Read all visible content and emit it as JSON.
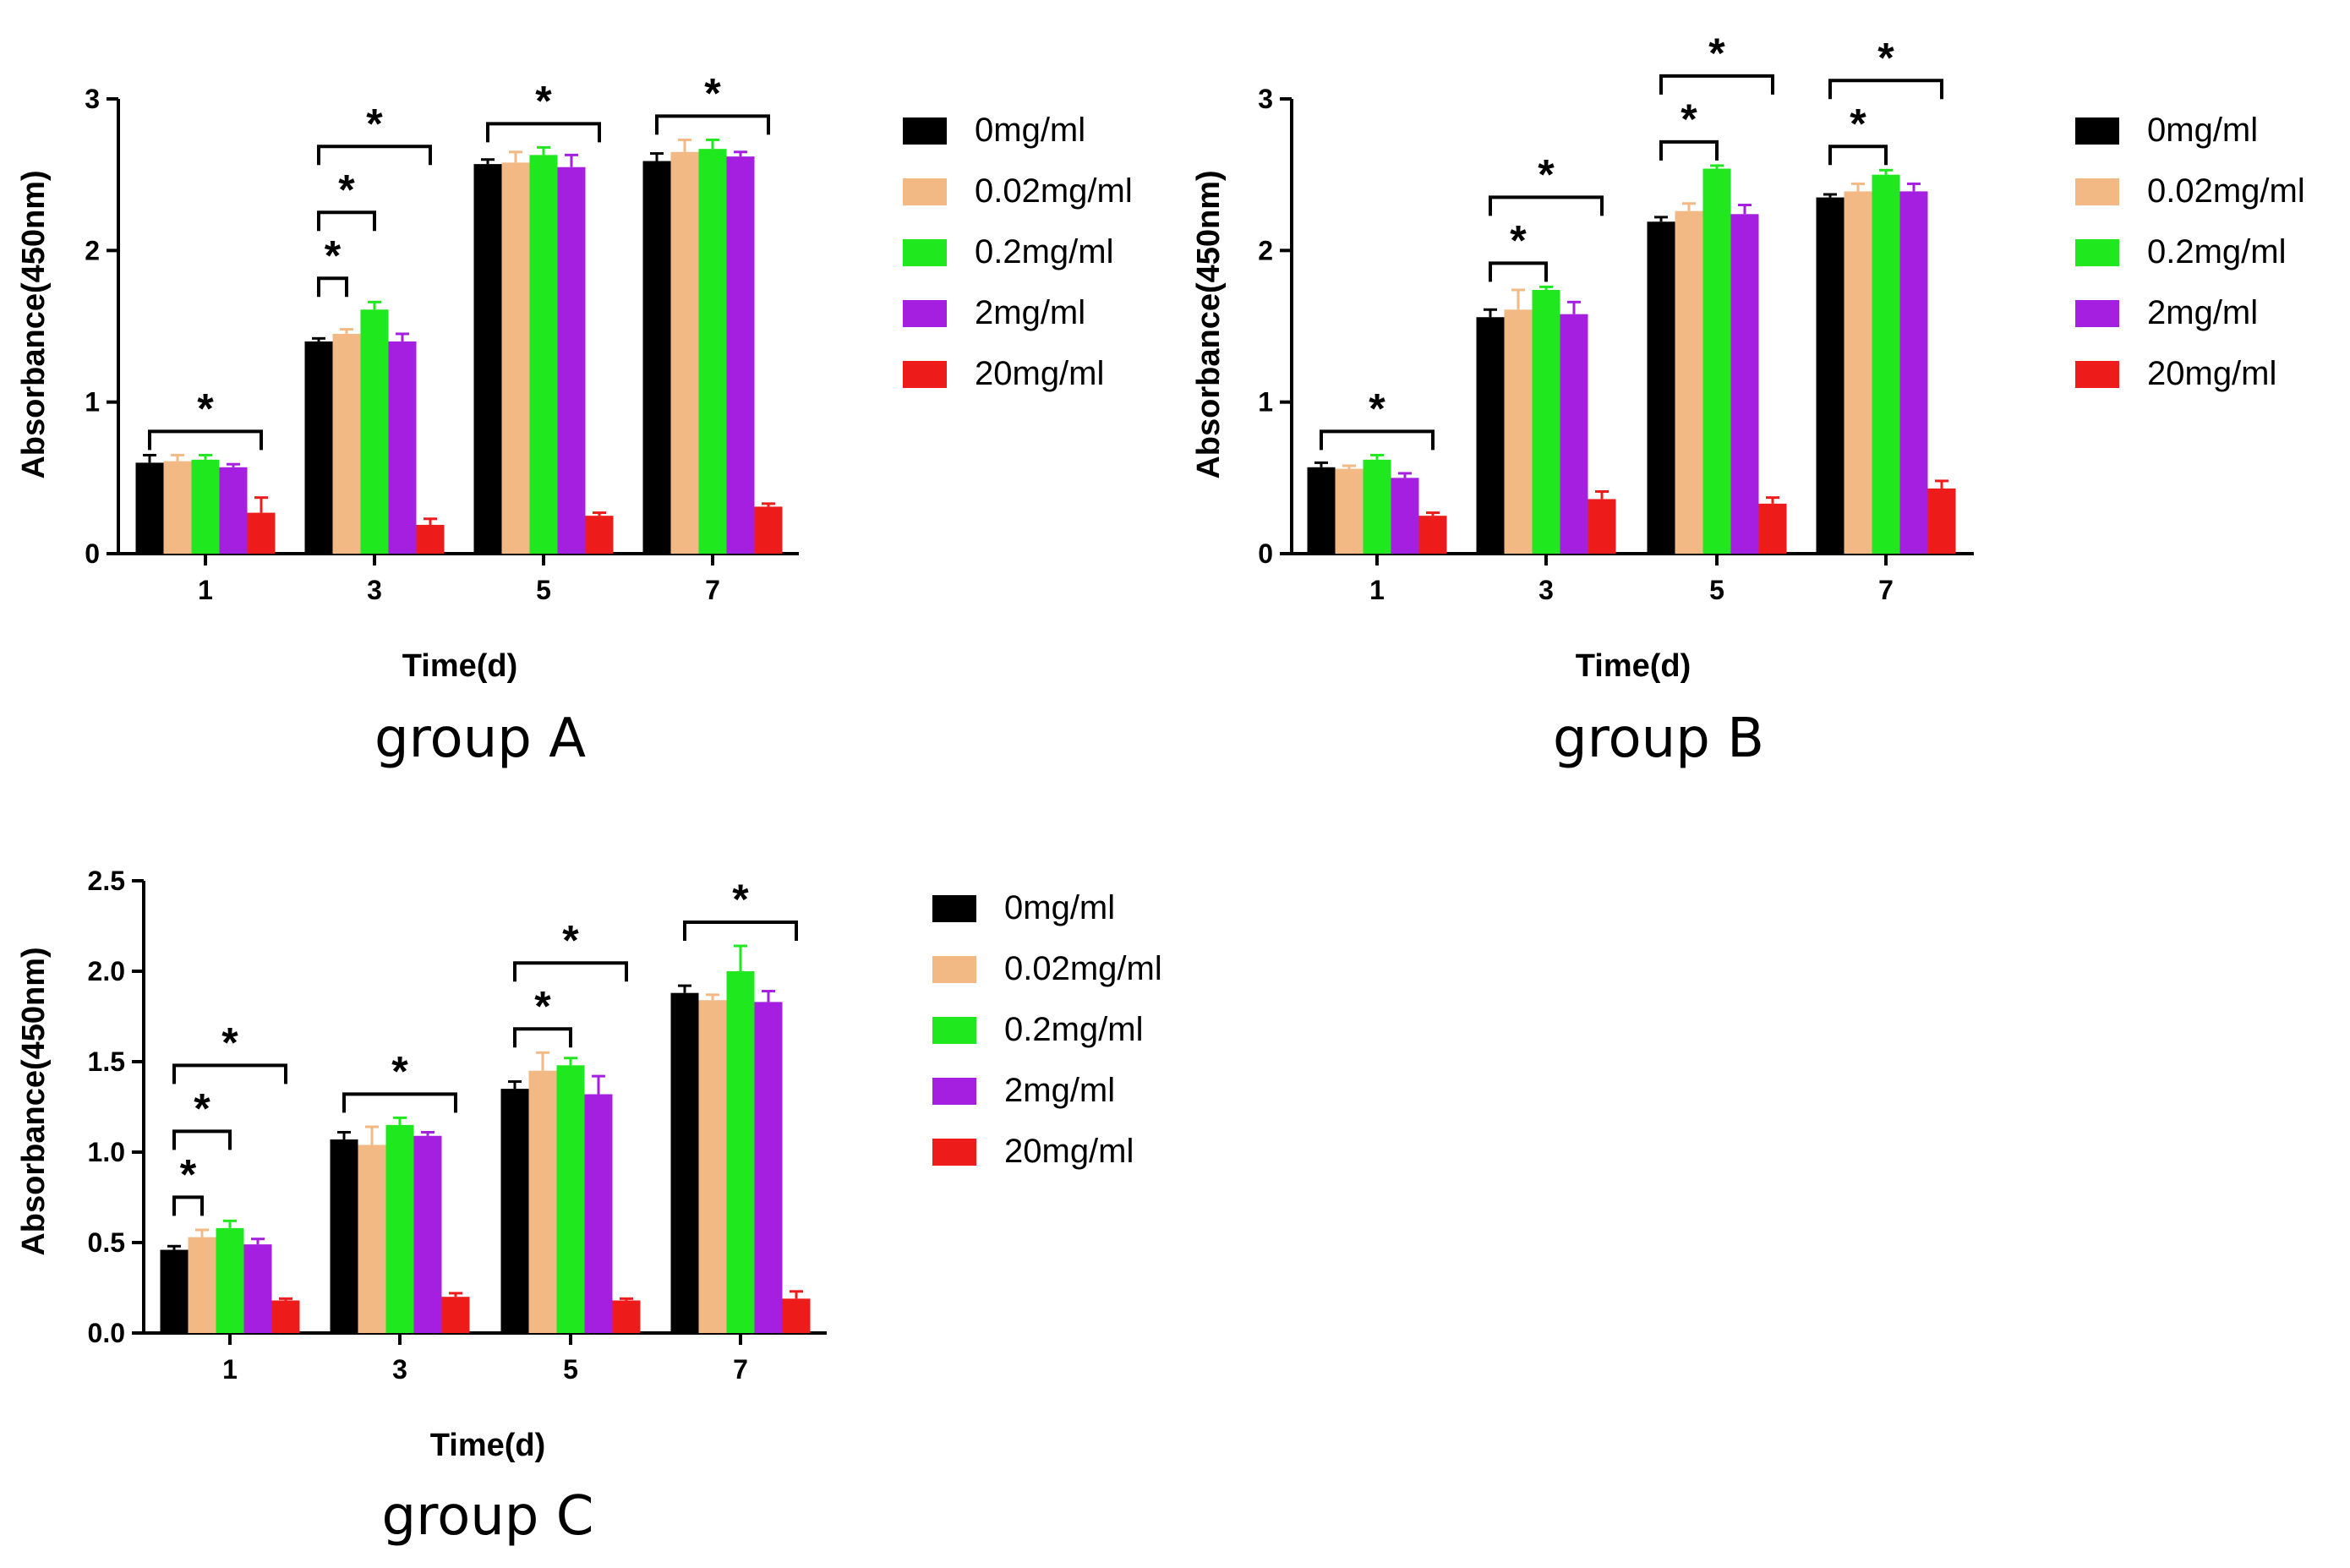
{
  "legend_labels": [
    "0mg/ml",
    "0.02mg/ml",
    "0.2mg/ml",
    "2mg/ml",
    "20mg/ml"
  ],
  "series_colors": [
    "#000000",
    "#f2b985",
    "#1fe81f",
    "#a51fe0",
    "#ee1b1b"
  ],
  "chart_data": [
    {
      "type": "bar",
      "title": "group A",
      "xlabel": "Time(d)",
      "ylabel": "Absorbance(450nm)",
      "categories": [
        "1",
        "3",
        "5",
        "7"
      ],
      "ylim": [
        0,
        3
      ],
      "yticks": [
        "0",
        "1",
        "2",
        "3"
      ],
      "series": [
        {
          "name": "0mg/ml",
          "values": [
            0.6,
            1.4,
            2.57,
            2.59
          ],
          "errors": [
            0.05,
            0.02,
            0.03,
            0.05
          ]
        },
        {
          "name": "0.02mg/ml",
          "values": [
            0.61,
            1.45,
            2.58,
            2.65
          ],
          "errors": [
            0.04,
            0.03,
            0.07,
            0.08
          ]
        },
        {
          "name": "0.2mg/ml",
          "values": [
            0.62,
            1.61,
            2.63,
            2.67
          ],
          "errors": [
            0.03,
            0.05,
            0.05,
            0.06
          ]
        },
        {
          "name": "2mg/ml",
          "values": [
            0.57,
            1.4,
            2.55,
            2.62
          ],
          "errors": [
            0.02,
            0.05,
            0.08,
            0.03
          ]
        },
        {
          "name": "20mg/ml",
          "values": [
            0.27,
            0.19,
            0.25,
            0.31
          ],
          "errors": [
            0.1,
            0.04,
            0.02,
            0.02
          ]
        }
      ],
      "significance": [
        {
          "group": 0,
          "from": 0,
          "to": 4,
          "label": "*"
        },
        {
          "group": 1,
          "from": 0,
          "to": 1,
          "label": "*"
        },
        {
          "group": 1,
          "from": 0,
          "to": 2,
          "label": "*"
        },
        {
          "group": 1,
          "from": 0,
          "to": 4,
          "label": "*"
        },
        {
          "group": 2,
          "from": 0,
          "to": 4,
          "label": "*"
        },
        {
          "group": 3,
          "from": 0,
          "to": 4,
          "label": "*"
        }
      ]
    },
    {
      "type": "bar",
      "title": "group B",
      "xlabel": "Time(d)",
      "ylabel": "Absorbance(450nm)",
      "categories": [
        "1",
        "3",
        "5",
        "7"
      ],
      "ylim": [
        0,
        3
      ],
      "yticks": [
        "0",
        "1",
        "2",
        "3"
      ],
      "series": [
        {
          "name": "0mg/ml",
          "values": [
            0.57,
            1.56,
            2.19,
            2.35
          ],
          "errors": [
            0.03,
            0.05,
            0.03,
            0.02
          ]
        },
        {
          "name": "0.02mg/ml",
          "values": [
            0.56,
            1.61,
            2.26,
            2.39
          ],
          "errors": [
            0.02,
            0.13,
            0.05,
            0.05
          ]
        },
        {
          "name": "0.2mg/ml",
          "values": [
            0.62,
            1.74,
            2.54,
            2.5
          ],
          "errors": [
            0.03,
            0.02,
            0.02,
            0.03
          ]
        },
        {
          "name": "2mg/ml",
          "values": [
            0.5,
            1.58,
            2.24,
            2.39
          ],
          "errors": [
            0.03,
            0.08,
            0.06,
            0.05
          ]
        },
        {
          "name": "20mg/ml",
          "values": [
            0.25,
            0.36,
            0.33,
            0.43
          ],
          "errors": [
            0.02,
            0.05,
            0.04,
            0.05
          ]
        }
      ],
      "significance": [
        {
          "group": 0,
          "from": 0,
          "to": 4,
          "label": "*"
        },
        {
          "group": 1,
          "from": 0,
          "to": 2,
          "label": "*"
        },
        {
          "group": 1,
          "from": 0,
          "to": 4,
          "label": "*"
        },
        {
          "group": 2,
          "from": 0,
          "to": 2,
          "label": "*"
        },
        {
          "group": 2,
          "from": 0,
          "to": 4,
          "label": "*"
        },
        {
          "group": 3,
          "from": 0,
          "to": 2,
          "label": "*"
        },
        {
          "group": 3,
          "from": 0,
          "to": 4,
          "label": "*"
        }
      ]
    },
    {
      "type": "bar",
      "title": "group C",
      "xlabel": "Time(d)",
      "ylabel": "Absorbance(450nm)",
      "categories": [
        "1",
        "3",
        "5",
        "7"
      ],
      "ylim": [
        0,
        2.5
      ],
      "yticks": [
        "0.0",
        "0.5",
        "1.0",
        "1.5",
        "2.0",
        "2.5"
      ],
      "series": [
        {
          "name": "0mg/ml",
          "values": [
            0.46,
            1.07,
            1.35,
            1.88
          ],
          "errors": [
            0.02,
            0.04,
            0.04,
            0.04
          ]
        },
        {
          "name": "0.02mg/ml",
          "values": [
            0.53,
            1.04,
            1.45,
            1.84
          ],
          "errors": [
            0.04,
            0.1,
            0.1,
            0.03
          ]
        },
        {
          "name": "0.2mg/ml",
          "values": [
            0.58,
            1.15,
            1.48,
            2.0
          ],
          "errors": [
            0.04,
            0.04,
            0.04,
            0.14
          ]
        },
        {
          "name": "2mg/ml",
          "values": [
            0.49,
            1.09,
            1.32,
            1.83
          ],
          "errors": [
            0.03,
            0.02,
            0.1,
            0.06
          ]
        },
        {
          "name": "20mg/ml",
          "values": [
            0.18,
            0.2,
            0.18,
            0.19
          ],
          "errors": [
            0.01,
            0.02,
            0.01,
            0.04
          ]
        }
      ],
      "significance": [
        {
          "group": 0,
          "from": 0,
          "to": 1,
          "label": "*"
        },
        {
          "group": 0,
          "from": 0,
          "to": 2,
          "label": "*"
        },
        {
          "group": 0,
          "from": 0,
          "to": 4,
          "label": "*"
        },
        {
          "group": 1,
          "from": 0,
          "to": 4,
          "label": "*"
        },
        {
          "group": 2,
          "from": 0,
          "to": 2,
          "label": "*"
        },
        {
          "group": 2,
          "from": 0,
          "to": 4,
          "label": "*"
        },
        {
          "group": 3,
          "from": 0,
          "to": 4,
          "label": "*"
        }
      ]
    }
  ]
}
